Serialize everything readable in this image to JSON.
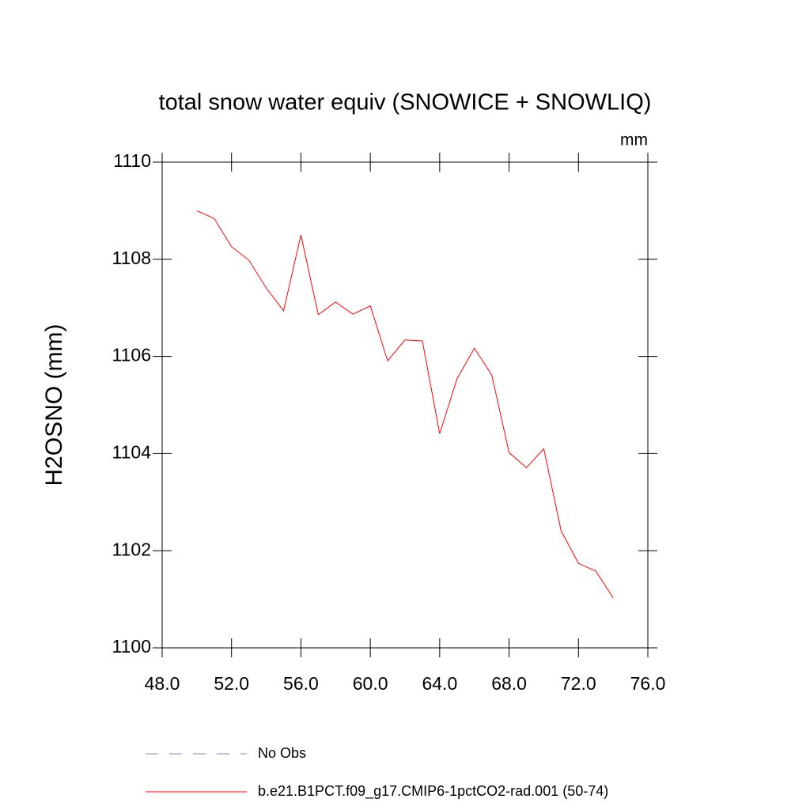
{
  "chart_data": {
    "type": "line",
    "title": "total snow water equiv (SNOWICE + SNOWLIQ)",
    "units": "mm",
    "y_label": "H2OSNO  (mm)",
    "x": [
      50,
      51,
      52,
      53,
      54,
      55,
      56,
      57,
      58,
      59,
      60,
      61,
      62,
      63,
      64,
      65,
      66,
      67,
      68,
      69,
      70,
      71,
      72,
      73,
      74
    ],
    "series": [
      {
        "name": "No Obs",
        "color": "#8080c0",
        "dashed": true,
        "values": [
          null,
          null,
          null,
          null,
          null,
          null,
          null,
          null,
          null,
          null,
          null,
          null,
          null,
          null,
          null,
          null,
          null,
          null,
          null,
          null,
          null,
          null,
          null,
          null,
          null
        ]
      },
      {
        "name": "b.e21.B1PCT.f09_g17.CMIP6-1pctCO2-rad.001 (50-74)",
        "color": "#ff0000",
        "dashed": false,
        "values": [
          1109.0,
          1108.84,
          1108.26,
          1107.98,
          1107.41,
          1106.94,
          1108.5,
          1106.86,
          1107.12,
          1106.87,
          1107.04,
          1105.91,
          1106.34,
          1106.32,
          1104.41,
          1105.54,
          1106.17,
          1105.62,
          1104.02,
          1103.71,
          1104.1,
          1102.41,
          1101.74,
          1101.58,
          1101.03
        ]
      }
    ],
    "xlim": [
      48,
      76
    ],
    "xticks": [
      {
        "value": 48,
        "label": "48.0"
      },
      {
        "value": 52,
        "label": "52.0"
      },
      {
        "value": 56,
        "label": "56.0"
      },
      {
        "value": 60,
        "label": "60.0"
      },
      {
        "value": 64,
        "label": "64.0"
      },
      {
        "value": 68,
        "label": "68.0"
      },
      {
        "value": 72,
        "label": "72.0"
      },
      {
        "value": 76,
        "label": "76.0"
      }
    ],
    "ylim": [
      1100,
      1110
    ],
    "yticks": [
      1100,
      1102,
      1104,
      1106,
      1108,
      1110
    ]
  }
}
